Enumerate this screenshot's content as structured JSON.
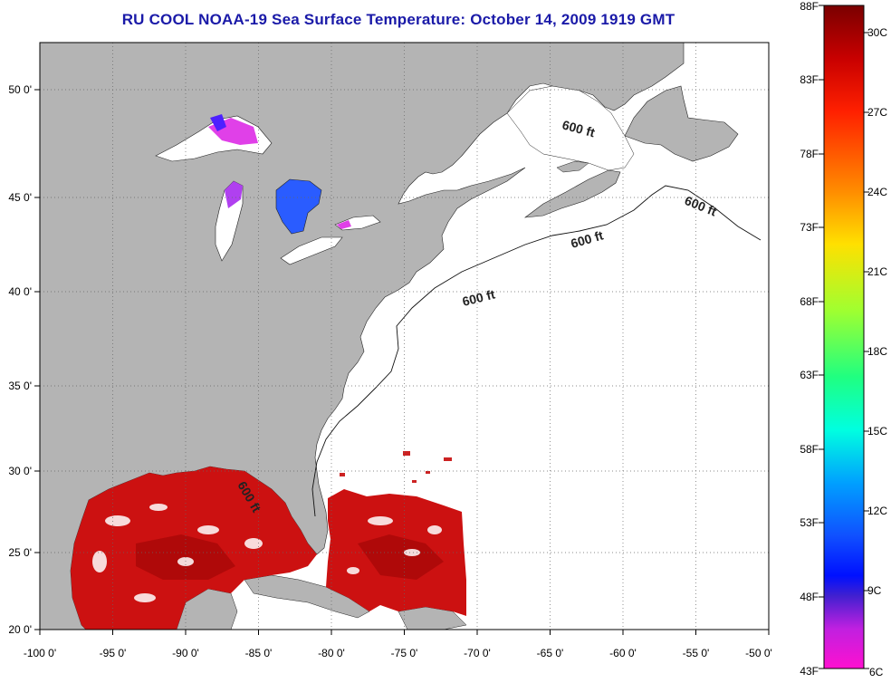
{
  "title": "RU COOL  NOAA-19  Sea Surface Temperature:  October 14, 2009 1919 GMT",
  "colors": {
    "land": "#b4b4b4",
    "ocean": "#ffffff",
    "sst_warm": "#cc1111",
    "sst_dark": "#a80808",
    "lake_blue": "#2a5cff",
    "lake_magenta": "#e040e8",
    "title": "#1a1aa8"
  },
  "map": {
    "lon_range": [
      -100,
      -50
    ],
    "lat_range": [
      20,
      52.5
    ],
    "lon_ticks": [
      "-100 0'",
      "-95 0'",
      "-90 0'",
      "-85 0'",
      "-80 0'",
      "-75 0'",
      "-70 0'",
      "-65 0'",
      "-60 0'",
      "-55 0'",
      "-50 0'"
    ],
    "lat_ticks": [
      "50 0'",
      "45 0'",
      "40 0'",
      "35 0'",
      "30 0'",
      "25 0'",
      "20 0'"
    ],
    "bathymetry_labels": [
      "600 ft",
      "600 ft",
      "600 ft",
      "600 ft",
      "600 ft"
    ]
  },
  "colorbar": {
    "f_labels": [
      "88F",
      "83F",
      "78F",
      "73F",
      "68F",
      "63F",
      "58F",
      "53F",
      "48F",
      "43F"
    ],
    "c_labels": [
      "30C",
      "27C",
      "24C",
      "21C",
      "18C",
      "15C",
      "12C",
      "9C",
      "6C"
    ]
  }
}
